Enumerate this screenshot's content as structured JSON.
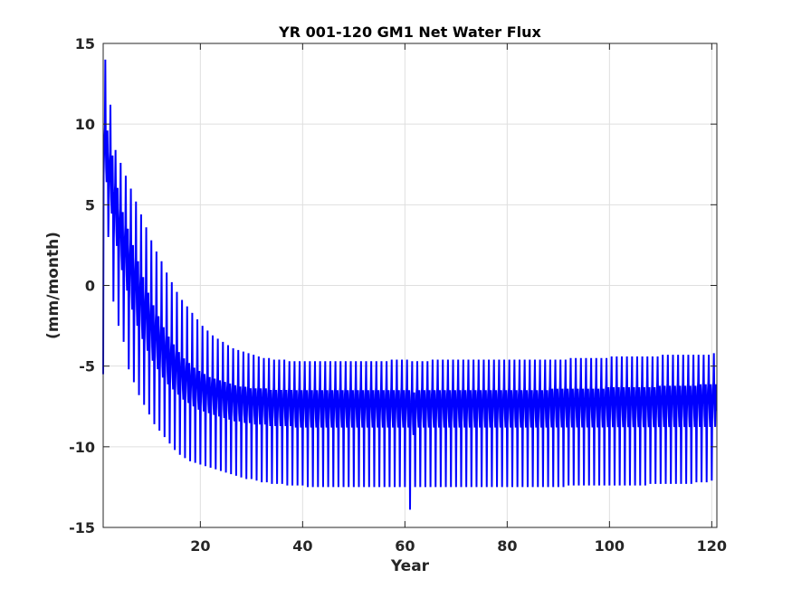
{
  "chart_data": {
    "type": "line",
    "title": "YR 001-120 GM1 Net Water Flux",
    "xlabel": "Year",
    "ylabel": "(mm/month)",
    "xlim": [
      1,
      121
    ],
    "ylim": [
      -15,
      15
    ],
    "xticks": [
      20,
      40,
      60,
      80,
      100,
      120
    ],
    "yticks": [
      15,
      10,
      5,
      0,
      -5,
      -10,
      -15
    ],
    "x_tick_labels": [
      "20",
      "40",
      "60",
      "80",
      "100",
      "120"
    ],
    "y_tick_labels": [
      "15",
      "10",
      "5",
      "0",
      "-5",
      "-10",
      "-15"
    ],
    "grid": true,
    "legend": "none",
    "series": [
      {
        "color": "#0000ff",
        "x_unit": "year",
        "samples_per_year": 12,
        "annual_maximum": [
          14.0,
          11.2,
          8.4,
          7.6,
          6.8,
          6.0,
          5.2,
          4.4,
          3.6,
          2.8,
          2.1,
          1.5,
          0.8,
          0.2,
          -0.4,
          -0.9,
          -1.3,
          -1.7,
          -2.1,
          -2.5,
          -2.8,
          -3.1,
          -3.3,
          -3.5,
          -3.7,
          -3.9,
          -4.0,
          -4.1,
          -4.2,
          -4.3,
          -4.4,
          -4.5,
          -4.5,
          -4.6,
          -4.6,
          -4.6,
          -4.7,
          -4.7,
          -4.7,
          -4.7,
          -4.7,
          -4.7,
          -4.7,
          -4.7,
          -4.7,
          -4.7,
          -4.7,
          -4.7,
          -4.7,
          -4.7,
          -4.7,
          -4.7,
          -4.7,
          -4.7,
          -4.7,
          -4.7,
          -4.6,
          -4.6,
          -4.6,
          -4.6,
          -4.7,
          -4.7,
          -4.7,
          -4.7,
          -4.6,
          -4.6,
          -4.6,
          -4.6,
          -4.6,
          -4.6,
          -4.6,
          -4.6,
          -4.6,
          -4.6,
          -4.6,
          -4.6,
          -4.6,
          -4.6,
          -4.6,
          -4.6,
          -4.6,
          -4.6,
          -4.6,
          -4.6,
          -4.6,
          -4.6,
          -4.6,
          -4.6,
          -4.6,
          -4.6,
          -4.6,
          -4.5,
          -4.5,
          -4.5,
          -4.5,
          -4.5,
          -4.5,
          -4.5,
          -4.5,
          -4.4,
          -4.4,
          -4.4,
          -4.4,
          -4.4,
          -4.4,
          -4.4,
          -4.4,
          -4.4,
          -4.4,
          -4.3,
          -4.3,
          -4.3,
          -4.3,
          -4.3,
          -4.3,
          -4.3,
          -4.3,
          -4.3,
          -4.3,
          -4.2
        ],
        "annual_minimum": [
          -5.5,
          3.0,
          -1.0,
          -2.5,
          -3.5,
          -5.2,
          -6.0,
          -6.8,
          -7.4,
          -8.0,
          -8.6,
          -9.0,
          -9.4,
          -9.8,
          -10.2,
          -10.5,
          -10.7,
          -10.9,
          -11.0,
          -11.1,
          -11.2,
          -11.3,
          -11.4,
          -11.5,
          -11.6,
          -11.7,
          -11.8,
          -11.9,
          -12.0,
          -12.0,
          -12.1,
          -12.2,
          -12.2,
          -12.3,
          -12.3,
          -12.3,
          -12.4,
          -12.4,
          -12.4,
          -12.4,
          -12.5,
          -12.5,
          -12.5,
          -12.5,
          -12.5,
          -12.5,
          -12.5,
          -12.5,
          -12.5,
          -12.5,
          -12.5,
          -12.5,
          -12.5,
          -12.5,
          -12.5,
          -12.5,
          -12.5,
          -12.5,
          -12.5,
          -12.5,
          -13.9,
          -12.5,
          -12.5,
          -12.5,
          -12.5,
          -12.5,
          -12.5,
          -12.5,
          -12.5,
          -12.5,
          -12.5,
          -12.5,
          -12.5,
          -12.5,
          -12.5,
          -12.5,
          -12.5,
          -12.5,
          -12.5,
          -12.5,
          -12.5,
          -12.5,
          -12.5,
          -12.5,
          -12.5,
          -12.5,
          -12.5,
          -12.5,
          -12.5,
          -12.5,
          -12.5,
          -12.4,
          -12.4,
          -12.4,
          -12.4,
          -12.4,
          -12.4,
          -12.4,
          -12.4,
          -12.4,
          -12.4,
          -12.4,
          -12.4,
          -12.4,
          -12.4,
          -12.4,
          -12.4,
          -12.3,
          -12.3,
          -12.3,
          -12.3,
          -12.3,
          -12.3,
          -12.3,
          -12.3,
          -12.3,
          -12.2,
          -12.2,
          -12.2,
          -12.1
        ],
        "annual_band_upper": [
          10.0,
          8.5,
          6.5,
          5.0,
          4.0,
          3.0,
          2.0,
          1.0,
          0.0,
          -0.8,
          -1.5,
          -2.2,
          -2.8,
          -3.3,
          -3.8,
          -4.2,
          -4.5,
          -4.8,
          -5.0,
          -5.2,
          -5.4,
          -5.5,
          -5.6,
          -5.7,
          -5.8,
          -5.9,
          -6.0,
          -6.0,
          -6.1,
          -6.1,
          -6.1,
          -6.1,
          -6.2,
          -6.2,
          -6.2,
          -6.2,
          -6.2,
          -6.2,
          -6.2,
          -6.2,
          -6.2,
          -6.2,
          -6.2,
          -6.2,
          -6.2,
          -6.2,
          -6.2,
          -6.2,
          -6.2,
          -6.2,
          -6.2,
          -6.2,
          -6.2,
          -6.2,
          -6.2,
          -6.2,
          -6.2,
          -6.2,
          -6.2,
          -6.2,
          -6.3,
          -6.2,
          -6.2,
          -6.2,
          -6.2,
          -6.2,
          -6.2,
          -6.2,
          -6.2,
          -6.2,
          -6.2,
          -6.2,
          -6.2,
          -6.2,
          -6.2,
          -6.2,
          -6.2,
          -6.2,
          -6.2,
          -6.2,
          -6.2,
          -6.2,
          -6.2,
          -6.2,
          -6.2,
          -6.2,
          -6.2,
          -6.1,
          -6.1,
          -6.1,
          -6.1,
          -6.1,
          -6.1,
          -6.1,
          -6.1,
          -6.1,
          -6.1,
          -6.1,
          -6.0,
          -6.0,
          -6.0,
          -6.0,
          -6.0,
          -6.0,
          -6.0,
          -6.0,
          -6.0,
          -6.0,
          -5.9,
          -5.9,
          -5.9,
          -5.9,
          -5.9,
          -5.9,
          -5.9,
          -5.9,
          -5.8,
          -5.8,
          -5.8,
          -5.8
        ],
        "annual_band_lower": [
          6.0,
          4.0,
          2.0,
          0.5,
          -0.8,
          -2.0,
          -3.0,
          -3.8,
          -4.5,
          -5.1,
          -5.6,
          -6.1,
          -6.5,
          -6.8,
          -7.1,
          -7.4,
          -7.6,
          -7.8,
          -8.0,
          -8.1,
          -8.2,
          -8.3,
          -8.4,
          -8.5,
          -8.6,
          -8.7,
          -8.7,
          -8.8,
          -8.8,
          -8.9,
          -8.9,
          -8.9,
          -9.0,
          -9.0,
          -9.0,
          -9.0,
          -9.0,
          -9.1,
          -9.1,
          -9.1,
          -9.1,
          -9.1,
          -9.1,
          -9.1,
          -9.1,
          -9.1,
          -9.1,
          -9.1,
          -9.1,
          -9.1,
          -9.1,
          -9.1,
          -9.1,
          -9.1,
          -9.1,
          -9.1,
          -9.1,
          -9.1,
          -9.1,
          -9.1,
          -9.6,
          -9.1,
          -9.1,
          -9.1,
          -9.1,
          -9.1,
          -9.1,
          -9.1,
          -9.1,
          -9.1,
          -9.1,
          -9.1,
          -9.1,
          -9.1,
          -9.1,
          -9.1,
          -9.1,
          -9.1,
          -9.1,
          -9.1,
          -9.1,
          -9.1,
          -9.1,
          -9.1,
          -9.1,
          -9.1,
          -9.1,
          -9.1,
          -9.1,
          -9.1,
          -9.1,
          -9.1,
          -9.1,
          -9.1,
          -9.1,
          -9.1,
          -9.1,
          -9.1,
          -9.1,
          -9.1,
          -9.1,
          -9.1,
          -9.1,
          -9.1,
          -9.1,
          -9.1,
          -9.1,
          -9.1,
          -9.1,
          -9.1,
          -9.1,
          -9.1,
          -9.1,
          -9.1,
          -9.1,
          -9.1,
          -9.1,
          -9.1,
          -9.1,
          -9.1
        ]
      }
    ]
  }
}
